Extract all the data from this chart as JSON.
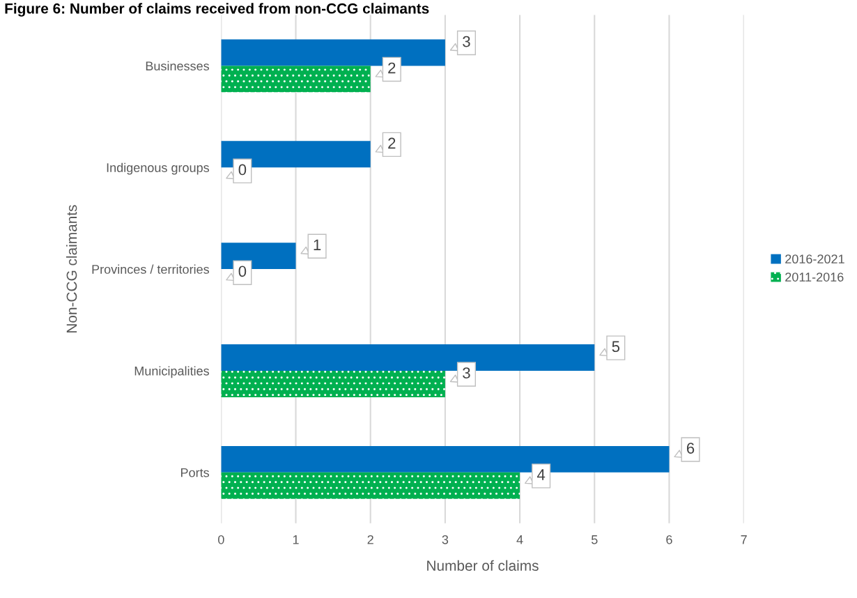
{
  "chart_data": {
    "type": "bar",
    "orientation": "horizontal",
    "title": "Figure 6: Number of claims received from non-CCG claimants",
    "xlabel": "Number of claims",
    "ylabel": "Non-CCG claimants",
    "categories": [
      "Businesses",
      "Indigenous groups",
      "Provinces / territories",
      "Municipalities",
      "Ports"
    ],
    "series": [
      {
        "name": "2016-2021",
        "color": "#0070c0",
        "values": [
          3,
          2,
          1,
          5,
          6
        ]
      },
      {
        "name": "2011-2016",
        "color": "#00b050",
        "values": [
          2,
          0,
          0,
          3,
          4
        ]
      }
    ],
    "xlim": [
      0,
      7
    ],
    "xticks": [
      0,
      1,
      2,
      3,
      4,
      5,
      6,
      7
    ],
    "grid": "x",
    "legend": "right",
    "data_labels": true
  }
}
